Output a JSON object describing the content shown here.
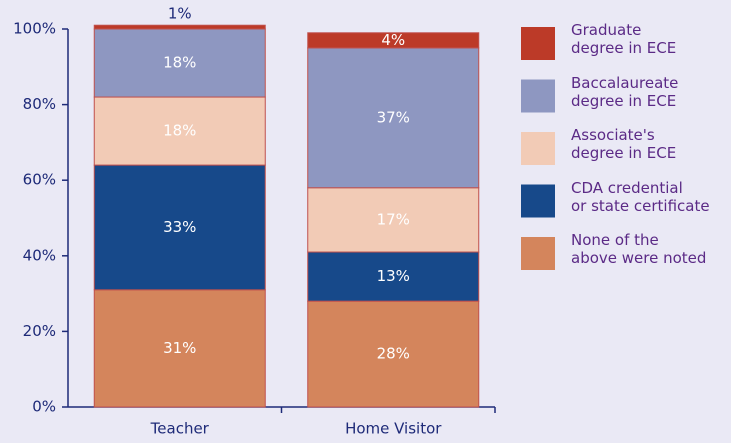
{
  "chart_data": {
    "type": "stacked_bar",
    "categories": [
      "Teacher",
      "Home Visitor"
    ],
    "series": [
      {
        "name": "None of the\nabove were noted",
        "color": "#d4855c",
        "values": [
          31,
          28
        ],
        "value_labels": [
          "31%",
          "28%"
        ]
      },
      {
        "name": "CDA credential\nor state certificate",
        "color": "#17498a",
        "values": [
          33,
          13
        ],
        "value_labels": [
          "33%",
          "13%"
        ]
      },
      {
        "name": "Associate's\ndegree in ECE",
        "color": "#f2cbb6",
        "values": [
          18,
          17
        ],
        "value_labels": [
          "18%",
          "17%"
        ]
      },
      {
        "name": "Baccalaureate\ndegree in ECE",
        "color": "#8e97c1",
        "values": [
          18,
          37
        ],
        "value_labels": [
          "18%",
          "37%"
        ]
      },
      {
        "name": "Graduate\ndegree in ECE",
        "color": "#bc3a28",
        "values": [
          1,
          4
        ],
        "value_labels": [
          "1%",
          "4%"
        ]
      }
    ],
    "ylim": [
      0,
      100
    ],
    "yticks": [
      {
        "value": 0,
        "label": "0%"
      },
      {
        "value": 20,
        "label": "20%"
      },
      {
        "value": 40,
        "label": "40%"
      },
      {
        "value": 60,
        "label": "60%"
      },
      {
        "value": 80,
        "label": "80%"
      },
      {
        "value": 100,
        "label": "100%"
      }
    ],
    "legend": "right"
  }
}
